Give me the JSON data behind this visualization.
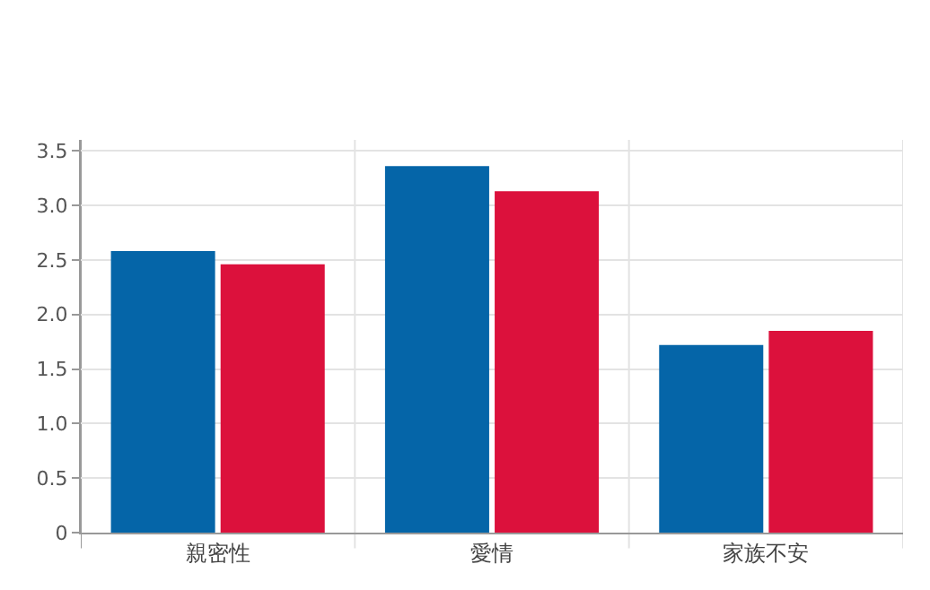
{
  "chart_data": {
    "type": "bar",
    "categories": [
      "親密性",
      "愛情",
      "家族不安"
    ],
    "series": [
      {
        "color": "#0565a8",
        "values": [
          2.58,
          3.36,
          1.72
        ]
      },
      {
        "color": "#dc113c",
        "values": [
          2.46,
          3.13,
          1.85
        ]
      }
    ],
    "ylim": [
      0,
      3.6
    ],
    "yticks": [
      {
        "value": 0,
        "label": "0"
      },
      {
        "value": 0.5,
        "label": "0.5"
      },
      {
        "value": 1,
        "label": "1.0"
      },
      {
        "value": 1.5,
        "label": "1.5"
      },
      {
        "value": 2,
        "label": "2.0"
      },
      {
        "value": 2.5,
        "label": "2.5"
      },
      {
        "value": 3,
        "label": "3.0"
      },
      {
        "value": 3.5,
        "label": "3.5"
      }
    ],
    "grid": true,
    "legend": false
  }
}
